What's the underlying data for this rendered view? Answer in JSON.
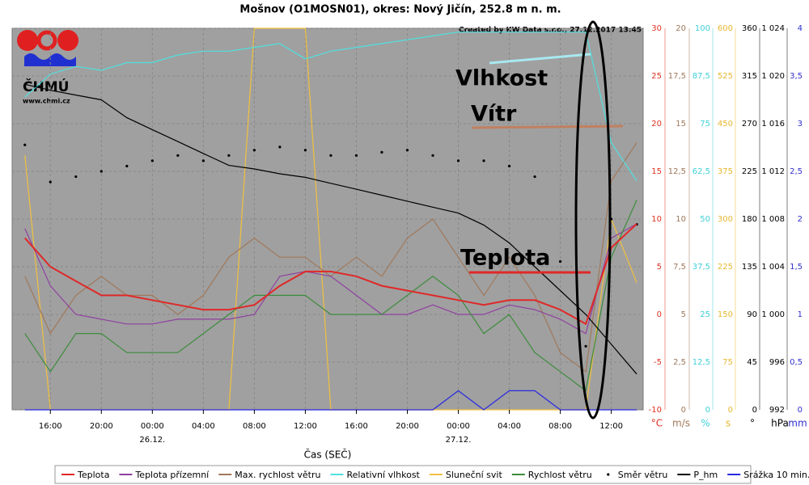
{
  "chart_data": {
    "type": "line",
    "title": "Mošnov (O1MOSN01), okres: Nový Jičín, 252.8 m n. m.",
    "credit": "Created by KW Data s.r.o., 27.12.2017 13:45",
    "logo_text": "ČHMÚ",
    "logo_url": "www.chmi.cz",
    "x_label": "Čas (SEČ)",
    "xlim": [
      13,
      62.5
    ],
    "xticks": [
      {
        "value": 16,
        "label": "16:00"
      },
      {
        "value": 20,
        "label": "20:00"
      },
      {
        "value": 24,
        "label": "00:00"
      },
      {
        "value": 28,
        "label": "04:00"
      },
      {
        "value": 32,
        "label": "08:00"
      },
      {
        "value": 36,
        "label": "12:00"
      },
      {
        "value": 40,
        "label": "16:00"
      },
      {
        "value": 44,
        "label": "20:00"
      },
      {
        "value": 48,
        "label": "00:00"
      },
      {
        "value": 52,
        "label": "04:00"
      },
      {
        "value": 56,
        "label": "08:00"
      },
      {
        "value": 60,
        "label": "12:00"
      }
    ],
    "xdates": [
      {
        "value": 24,
        "label": "26.12."
      },
      {
        "value": 48,
        "label": "27.12."
      }
    ],
    "grid": true,
    "y_axes": [
      {
        "unit": "°C",
        "color": "#e03020",
        "lim": [
          -10,
          30
        ],
        "ticks": [
          -10,
          -5,
          0,
          5,
          10,
          15,
          20,
          25,
          30
        ]
      },
      {
        "unit": "m/s",
        "color": "#a0785a",
        "lim": [
          0,
          20
        ],
        "ticks": [
          0,
          {
            "value": 2.5,
            "label": "2,5"
          },
          5,
          {
            "value": 7.5,
            "label": "7,5"
          },
          10,
          {
            "value": 12.5,
            "label": "12,5"
          },
          15,
          {
            "value": 17.5,
            "label": "17,5"
          },
          20
        ]
      },
      {
        "unit": "%",
        "color": "#40d0d8",
        "lim": [
          0,
          100
        ],
        "ticks": [
          0,
          {
            "value": 12.5,
            "label": "12,5"
          },
          25,
          {
            "value": 37.5,
            "label": "37,5"
          },
          50,
          {
            "value": 62.5,
            "label": "62,5"
          },
          75,
          {
            "value": 87.5,
            "label": "87,5"
          },
          100
        ]
      },
      {
        "unit": "s",
        "color": "#e8b830",
        "lim": [
          0,
          600
        ],
        "ticks": [
          0,
          75,
          150,
          225,
          300,
          375,
          450,
          525,
          600
        ]
      },
      {
        "unit": "°",
        "color": "#000000",
        "lim": [
          0,
          360
        ],
        "ticks": [
          0,
          45,
          90,
          135,
          180,
          225,
          270,
          315,
          360
        ]
      },
      {
        "unit": "hPa",
        "color": "#000000",
        "lim": [
          992,
          1024
        ],
        "ticks": [
          992,
          996,
          {
            "value": 1000,
            "label": "1 000"
          },
          {
            "value": 1004,
            "label": "1 004"
          },
          {
            "value": 1008,
            "label": "1 008"
          },
          {
            "value": 1012,
            "label": "1 012"
          },
          {
            "value": 1016,
            "label": "1 016"
          },
          {
            "value": 1020,
            "label": "1 020"
          },
          {
            "value": 1024,
            "label": "1 024"
          }
        ]
      },
      {
        "unit": "mm",
        "color": "#3030d0",
        "lim": [
          0,
          4
        ],
        "ticks": [
          0,
          {
            "value": 0.5,
            "label": "0,5"
          },
          1,
          {
            "value": 1.5,
            "label": "1,5"
          },
          2,
          {
            "value": 2.5,
            "label": "2,5"
          },
          3,
          {
            "value": 3.5,
            "label": "3,5"
          },
          4
        ]
      }
    ],
    "x": [
      14,
      16,
      18,
      20,
      22,
      24,
      26,
      28,
      30,
      32,
      34,
      36,
      38,
      40,
      42,
      44,
      46,
      48,
      50,
      52,
      54,
      56,
      58,
      60,
      62
    ],
    "series": [
      {
        "name": "Teplota",
        "color": "#e02828",
        "axis": 0,
        "style": "line",
        "values": [
          8,
          5,
          3.5,
          2,
          2,
          1.5,
          1,
          0.5,
          0.5,
          1,
          3,
          4.5,
          4.5,
          4,
          3,
          2.5,
          2,
          1.5,
          1,
          1.5,
          1.5,
          0.5,
          -1,
          7,
          9.5
        ]
      },
      {
        "name": "Teplota přízemní",
        "color": "#9040a0",
        "axis": 0,
        "style": "line",
        "values": [
          9,
          3,
          0,
          -0.5,
          -1,
          -1,
          -0.5,
          -0.5,
          -0.5,
          0,
          4,
          4.5,
          4,
          2,
          0,
          0,
          1,
          0,
          0,
          1,
          0.5,
          -0.5,
          -2,
          8,
          9.5
        ]
      },
      {
        "name": "Max. rychlost větru",
        "color": "#a0785a",
        "axis": 1,
        "style": "line",
        "values": [
          7,
          4,
          6,
          7,
          6,
          6,
          5,
          6,
          8,
          9,
          8,
          8,
          7,
          8,
          7,
          9,
          10,
          8,
          6,
          8,
          6,
          3,
          2,
          12,
          14
        ]
      },
      {
        "name": "Relativní vlhkost",
        "color": "#50e0e0",
        "axis": 2,
        "style": "line",
        "values": [
          82,
          88,
          90,
          89,
          91,
          91,
          93,
          94,
          94,
          95,
          96,
          92,
          94,
          95,
          96,
          97,
          98,
          99,
          99,
          99,
          99,
          99,
          99,
          70,
          60
        ]
      },
      {
        "name": "Sluneční svit",
        "color": "#f0c040",
        "axis": 3,
        "style": "line",
        "values": [
          400,
          0,
          0,
          0,
          0,
          0,
          0,
          0,
          0,
          600,
          600,
          600,
          0,
          0,
          0,
          0,
          0,
          0,
          0,
          0,
          0,
          0,
          0,
          300,
          200
        ]
      },
      {
        "name": "Rychlost větru",
        "color": "#3c8c3c",
        "axis": 1,
        "style": "line",
        "values": [
          4,
          2,
          4,
          4,
          3,
          3,
          3,
          4,
          5,
          6,
          6,
          6,
          5,
          5,
          5,
          6,
          7,
          6,
          4,
          5,
          3,
          2,
          1,
          8,
          11
        ]
      },
      {
        "name": "Směr větru",
        "color": "#000000",
        "axis": 4,
        "style": "dots",
        "values": [
          250,
          215,
          220,
          225,
          230,
          235,
          240,
          235,
          240,
          245,
          248,
          245,
          240,
          240,
          243,
          245,
          240,
          235,
          235,
          230,
          220,
          140,
          60,
          180,
          175
        ]
      },
      {
        "name": "P_hm",
        "color": "#000000",
        "axis": 5,
        "style": "line",
        "values": [
          1019.3,
          1018.8,
          1018.4,
          1018,
          1016.5,
          1015.5,
          1014.5,
          1013.5,
          1012.5,
          1012.2,
          1011.8,
          1011.5,
          1011,
          1010.5,
          1010,
          1009.5,
          1009,
          1008.5,
          1007.5,
          1006,
          1004,
          1002,
          1000,
          997.5,
          995
        ]
      },
      {
        "name": "Srážka 10 min.",
        "color": "#2828e0",
        "axis": 6,
        "style": "line",
        "values": [
          0,
          0,
          0,
          0,
          0,
          0,
          0,
          0,
          0,
          0,
          0,
          0,
          0,
          0,
          0,
          0,
          0,
          0.2,
          0,
          0.2,
          0.2,
          0,
          0,
          0,
          0
        ]
      }
    ],
    "annotations": [
      {
        "text": "Vlhkost",
        "color": "#a8e8f0"
      },
      {
        "text": "Vítr",
        "color": "#c08060"
      },
      {
        "text": "Teplota",
        "color": "#e02828"
      }
    ]
  }
}
